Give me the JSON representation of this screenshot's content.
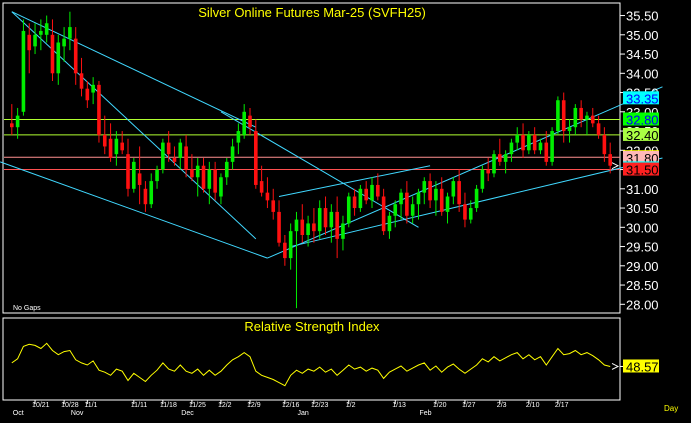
{
  "chart_data": {
    "type": "candlestick",
    "title": "Silver Online Futures Mar-25 (SVFH25)",
    "note": "No Gaps",
    "price_axis": {
      "ylim": [
        27.8,
        35.8
      ],
      "ticks": [
        "35.50",
        "35.00",
        "34.50",
        "34.00",
        "33.50",
        "33.00",
        "32.50",
        "32.00",
        "31.50",
        "31.00",
        "30.50",
        "30.00",
        "29.50",
        "29.00",
        "28.50",
        "28.00"
      ]
    },
    "x_labels": {
      "top_row": [
        "10/21",
        "10/28",
        "11/1",
        "11/11",
        "11/18",
        "11/25",
        "12/2",
        "12/9",
        "12/16",
        "12/23",
        "1/2",
        "1/13",
        "1/20",
        "1/27",
        "2/3",
        "2/10",
        "2/17"
      ],
      "bottom_row": [
        "Oct",
        "Nov",
        "Dec",
        "Jan",
        "Feb"
      ],
      "unit": "Day"
    },
    "price_tags": [
      {
        "value": "33.35",
        "price": 33.35,
        "bg": "#00ffff",
        "fg": "#0000ff"
      },
      {
        "value": "32.80",
        "price": 32.8,
        "bg": "#00ff00",
        "fg": "#0000ff"
      },
      {
        "value": "32.40",
        "price": 32.4,
        "bg": "#aaff44",
        "fg": "#000000"
      },
      {
        "value": "31.82",
        "price": 31.82,
        "bg": "#ffff00",
        "fg": "#000000"
      },
      {
        "value": "31.80",
        "price": 31.8,
        "bg": "#ffb8b8",
        "fg": "#000000"
      },
      {
        "value": "31.53",
        "price": 31.53,
        "bg": "#00ffff",
        "fg": "#0000ff"
      },
      {
        "value": "31.50",
        "price": 31.5,
        "bg": "#ff2020",
        "fg": "#000000"
      }
    ],
    "horizontal_lines": [
      {
        "price": 32.8,
        "color": "#b0ff30"
      },
      {
        "price": 32.4,
        "color": "#b0ff30"
      },
      {
        "price": 31.82,
        "color": "#ff9090"
      },
      {
        "price": 31.5,
        "color": "#ff5050"
      }
    ],
    "trend_lines": [
      {
        "from": [
          0,
          35.6
        ],
        "to": [
          42,
          32.6
        ],
        "color": "#40d8ff"
      },
      {
        "from": [
          0,
          35.6
        ],
        "to": [
          42,
          29.7
        ],
        "color": "#40d8ff"
      },
      {
        "from": [
          -2,
          31.7
        ],
        "to": [
          44,
          29.2
        ],
        "color": "#40d8ff"
      },
      {
        "from": [
          44,
          29.2
        ],
        "to": [
          112,
          33.65
        ],
        "color": "#40d8ff"
      },
      {
        "from": [
          48,
          29.5
        ],
        "to": [
          112,
          31.8
        ],
        "color": "#40d8ff"
      },
      {
        "from": [
          46,
          30.8
        ],
        "to": [
          72,
          31.6
        ],
        "color": "#40d8ff"
      },
      {
        "from": [
          36,
          33.0
        ],
        "to": [
          70,
          30.0
        ],
        "color": "#40d8ff"
      }
    ],
    "candles": [
      [
        32.7,
        33.2,
        32.4,
        32.6
      ],
      [
        32.6,
        33.1,
        32.3,
        32.9
      ],
      [
        33.0,
        35.4,
        32.9,
        35.1
      ],
      [
        35.0,
        35.3,
        34.0,
        34.6
      ],
      [
        34.7,
        35.3,
        34.5,
        35.0
      ],
      [
        35.0,
        35.4,
        34.6,
        35.1
      ],
      [
        35.0,
        35.5,
        34.8,
        35.3
      ],
      [
        35.0,
        35.4,
        33.8,
        34.0
      ],
      [
        34.0,
        35.0,
        33.7,
        34.8
      ],
      [
        34.7,
        35.2,
        34.3,
        34.9
      ],
      [
        34.9,
        35.6,
        34.6,
        35.2
      ],
      [
        34.9,
        35.2,
        33.7,
        34.0
      ],
      [
        34.0,
        34.4,
        33.4,
        33.6
      ],
      [
        33.6,
        33.8,
        33.1,
        33.3
      ],
      [
        33.5,
        33.9,
        33.2,
        33.7
      ],
      [
        33.7,
        33.8,
        32.2,
        32.4
      ],
      [
        32.4,
        32.9,
        31.9,
        32.1
      ],
      [
        32.3,
        32.7,
        31.7,
        31.8
      ],
      [
        31.9,
        32.5,
        31.6,
        32.3
      ],
      [
        32.2,
        32.5,
        31.9,
        32.0
      ],
      [
        31.9,
        32.3,
        30.8,
        31.0
      ],
      [
        31.0,
        31.8,
        30.9,
        31.7
      ],
      [
        31.4,
        32.1,
        30.6,
        31.1
      ],
      [
        31.0,
        31.2,
        30.4,
        30.6
      ],
      [
        30.6,
        31.4,
        30.5,
        31.2
      ],
      [
        31.2,
        31.6,
        31.0,
        31.5
      ],
      [
        31.5,
        32.3,
        31.4,
        32.2
      ],
      [
        32.2,
        32.5,
        31.7,
        31.9
      ],
      [
        31.8,
        32.1,
        31.6,
        31.7
      ],
      [
        31.8,
        32.3,
        31.5,
        32.2
      ],
      [
        32.1,
        32.4,
        31.3,
        31.5
      ],
      [
        31.5,
        31.9,
        31.2,
        31.3
      ],
      [
        31.3,
        31.8,
        30.8,
        31.6
      ],
      [
        31.6,
        31.8,
        30.9,
        31.0
      ],
      [
        31.0,
        31.7,
        30.6,
        31.5
      ],
      [
        31.5,
        31.7,
        30.7,
        30.9
      ],
      [
        30.8,
        31.4,
        30.6,
        31.3
      ],
      [
        31.3,
        31.8,
        31.1,
        31.7
      ],
      [
        31.7,
        32.3,
        31.5,
        32.1
      ],
      [
        32.2,
        32.7,
        31.9,
        32.5
      ],
      [
        32.4,
        33.2,
        32.3,
        33.0
      ],
      [
        32.9,
        33.1,
        32.4,
        32.6
      ],
      [
        32.5,
        32.8,
        31.0,
        31.1
      ],
      [
        31.2,
        31.6,
        30.8,
        30.9
      ],
      [
        30.9,
        31.3,
        30.5,
        30.7
      ],
      [
        30.7,
        31.0,
        30.2,
        30.4
      ],
      [
        30.4,
        30.7,
        29.5,
        29.6
      ],
      [
        29.6,
        29.8,
        29.0,
        29.2
      ],
      [
        29.2,
        30.1,
        28.9,
        29.9
      ],
      [
        29.9,
        30.4,
        27.9,
        30.2
      ],
      [
        30.2,
        30.6,
        29.6,
        29.8
      ],
      [
        29.8,
        30.3,
        29.5,
        30.1
      ],
      [
        30.1,
        30.5,
        29.6,
        29.9
      ],
      [
        29.9,
        30.7,
        29.7,
        30.5
      ],
      [
        30.5,
        30.8,
        29.8,
        30.0
      ],
      [
        30.0,
        30.6,
        29.6,
        30.4
      ],
      [
        30.4,
        30.8,
        29.2,
        29.7
      ],
      [
        29.7,
        30.3,
        29.4,
        30.1
      ],
      [
        30.1,
        30.9,
        30.0,
        30.8
      ],
      [
        30.8,
        31.0,
        30.3,
        30.5
      ],
      [
        30.5,
        31.1,
        30.4,
        31.0
      ],
      [
        31.0,
        31.2,
        30.6,
        30.7
      ],
      [
        30.7,
        31.3,
        30.5,
        31.1
      ],
      [
        31.1,
        31.4,
        30.7,
        30.8
      ],
      [
        30.8,
        31.0,
        29.8,
        29.9
      ],
      [
        29.9,
        30.4,
        29.7,
        30.3
      ],
      [
        30.3,
        30.7,
        30.0,
        30.6
      ],
      [
        30.6,
        31.0,
        30.2,
        30.9
      ],
      [
        30.9,
        31.2,
        30.1,
        30.3
      ],
      [
        30.3,
        30.8,
        30.1,
        30.6
      ],
      [
        30.6,
        31.0,
        30.2,
        30.9
      ],
      [
        30.9,
        31.3,
        30.6,
        31.2
      ],
      [
        31.2,
        31.4,
        30.5,
        30.7
      ],
      [
        30.7,
        31.2,
        30.3,
        31.0
      ],
      [
        31.0,
        31.3,
        30.3,
        30.4
      ],
      [
        30.4,
        30.9,
        30.1,
        30.8
      ],
      [
        30.8,
        31.3,
        30.6,
        31.2
      ],
      [
        31.2,
        31.5,
        30.4,
        30.6
      ],
      [
        30.6,
        30.9,
        30.0,
        30.2
      ],
      [
        30.2,
        30.7,
        30.1,
        30.5
      ],
      [
        30.5,
        31.1,
        30.4,
        31.0
      ],
      [
        31.0,
        31.6,
        30.9,
        31.5
      ],
      [
        31.5,
        31.8,
        31.2,
        31.4
      ],
      [
        31.4,
        32.0,
        31.3,
        31.9
      ],
      [
        31.9,
        32.3,
        31.6,
        31.7
      ],
      [
        31.7,
        32.0,
        31.4,
        31.9
      ],
      [
        31.9,
        32.3,
        31.7,
        32.2
      ],
      [
        32.2,
        32.6,
        32.0,
        32.4
      ],
      [
        32.4,
        32.7,
        31.8,
        32.0
      ],
      [
        32.0,
        32.5,
        31.9,
        32.4
      ],
      [
        32.4,
        32.6,
        31.9,
        32.0
      ],
      [
        32.0,
        32.3,
        31.9,
        32.2
      ],
      [
        32.2,
        32.5,
        31.6,
        31.7
      ],
      [
        31.7,
        32.6,
        31.6,
        32.5
      ],
      [
        32.5,
        33.4,
        32.4,
        33.3
      ],
      [
        33.3,
        33.5,
        32.2,
        32.5
      ],
      [
        32.5,
        32.8,
        32.2,
        32.6
      ],
      [
        32.6,
        33.2,
        32.4,
        33.1
      ],
      [
        33.1,
        33.3,
        32.6,
        32.8
      ],
      [
        32.8,
        33.0,
        32.4,
        32.9
      ],
      [
        32.9,
        33.1,
        32.6,
        32.7
      ],
      [
        32.7,
        32.9,
        32.3,
        32.4
      ],
      [
        32.4,
        32.6,
        31.7,
        31.9
      ],
      [
        31.9,
        32.2,
        31.4,
        31.6
      ]
    ],
    "rsi": {
      "title": "Relative Strength Index",
      "last_value": "48.57",
      "ylim": [
        20,
        80
      ],
      "values": [
        52,
        56,
        68,
        70,
        69,
        66,
        71,
        64,
        60,
        63,
        64,
        55,
        52,
        50,
        54,
        45,
        43,
        40,
        46,
        44,
        35,
        42,
        38,
        34,
        40,
        45,
        52,
        46,
        44,
        50,
        44,
        42,
        46,
        40,
        45,
        40,
        44,
        50,
        55,
        58,
        62,
        58,
        44,
        40,
        38,
        36,
        33,
        30,
        40,
        45,
        42,
        46,
        44,
        48,
        43,
        46,
        40,
        45,
        50,
        46,
        48,
        44,
        47,
        45,
        37,
        43,
        46,
        49,
        44,
        47,
        50,
        52,
        45,
        49,
        43,
        48,
        51,
        46,
        42,
        46,
        50,
        56,
        53,
        58,
        54,
        57,
        60,
        62,
        56,
        60,
        55,
        58,
        50,
        58,
        66,
        60,
        61,
        64,
        60,
        62,
        59,
        55,
        50,
        48.57
      ]
    }
  }
}
